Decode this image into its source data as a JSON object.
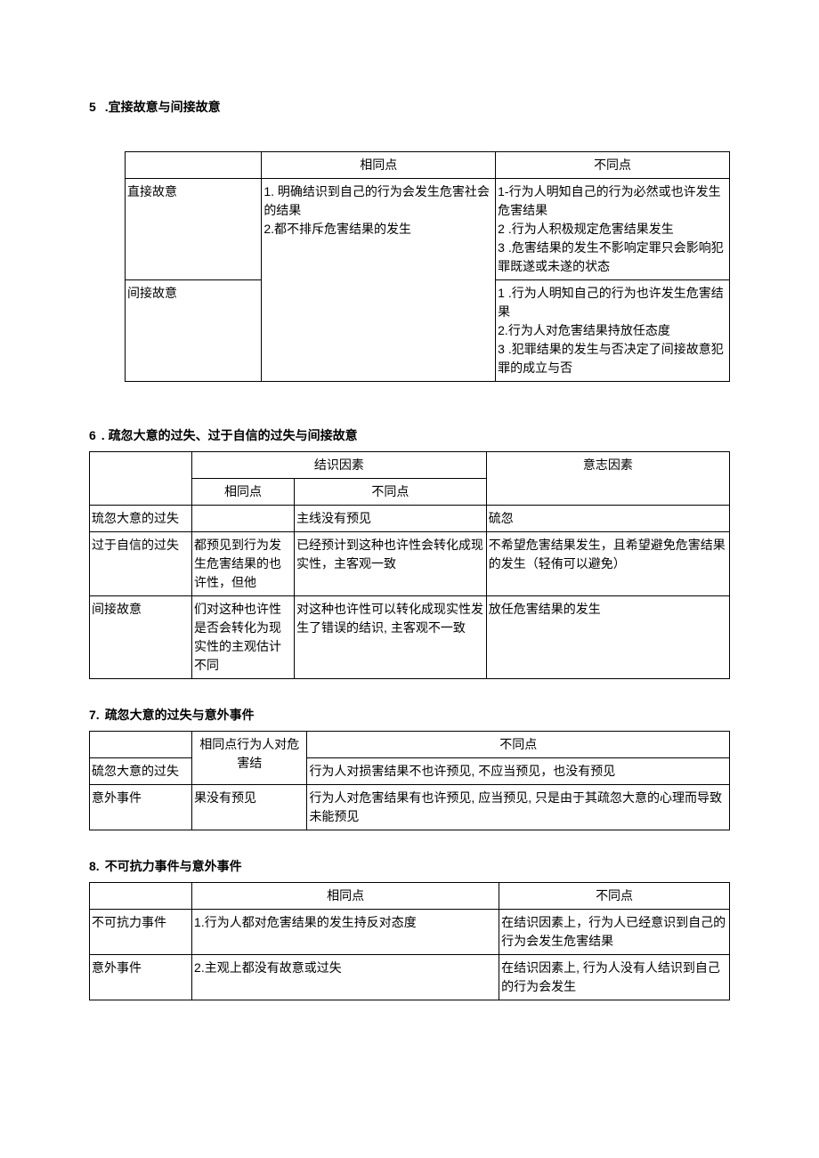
{
  "section5": {
    "title_num": "5",
    "title_text": ".宜接故意与间接故意",
    "headers": {
      "col2": "相同点",
      "col3": "不同点"
    },
    "rows": [
      {
        "label": "直接故意",
        "same": "1. 明确结识到自己的行为会发生危害社会的结果\n2.都不排斥危害结果的发生",
        "diff": "1-行为人明知自己的行为必然或也许发生危害结果\n2 .行为人积极规定危害结果发生\n3 .危害结果的发生不影响定罪只会影响犯罪既遂或未遂的状态"
      },
      {
        "label": "间接故意",
        "same": "",
        "diff": "1          .行为人明知自己的行为也许发生危害结果\n2.行为人对危害结果持放任态度\n3          .犯罪结果的发生与否决定了间接故意犯罪的成立与否"
      }
    ]
  },
  "section6": {
    "title_num": "6",
    "title_text": ". 疏忽大意的过失、过于自信的过失与间接故意",
    "headers": {
      "h1": "结识因素",
      "h2": "意志因素",
      "sub1": "相同点",
      "sub2": "不同点"
    },
    "rows": [
      {
        "label": "琉忽大意的过失",
        "same": "",
        "diff": "主线没有预见",
        "will": "硫忽"
      },
      {
        "label": "过于自信的过失",
        "same": "都预见到行为发生危害结果的也许性，但他",
        "diff": "已经预计到这种也许性会转化成现实性，主客观一致",
        "will": "不希望危害结果发生，且希望避免危害结果的发生（轻侑可以避免）"
      },
      {
        "label": "间接故意",
        "same": "们对这种也许性是否会转化为现实性的主观估计不同",
        "diff": "对这种也许性可以转化成现实性发生了错误的结识, 主客观不一致",
        "will": "放任危害结果的发生"
      }
    ]
  },
  "section7": {
    "title_num": "7.",
    "title_text": "疏忽大意的过失与意外事件",
    "headers": {
      "col2": "相同点行为人对危害结",
      "col3": "不同点"
    },
    "rows": [
      {
        "label": "硫忽大意的过失",
        "diff": "行为人对损害结果不也许预见, 不应当预见，也没有预见"
      },
      {
        "label": "意外事件",
        "same": "果没有预见",
        "diff": "行为人对危害结果有也许预见, 应当预见, 只是由于其疏忽大意的心理而导致未能预见"
      }
    ]
  },
  "section8": {
    "title_num": "8.",
    "title_text": "不可抗力事件与意外事件",
    "headers": {
      "col2": "相同点",
      "col3": "不同点"
    },
    "rows": [
      {
        "label": "不可抗力事件",
        "same": "1.行为人都对危害结果的发生持反对态度",
        "diff": "在结识因素上，行为人已经意识到自己的行为会发生危害结果"
      },
      {
        "label": "意外事件",
        "same": "2.主观上都没有故意或过失",
        "diff": "在结识因素上, 行为人没有人结识到自己的行为会发生"
      }
    ]
  }
}
